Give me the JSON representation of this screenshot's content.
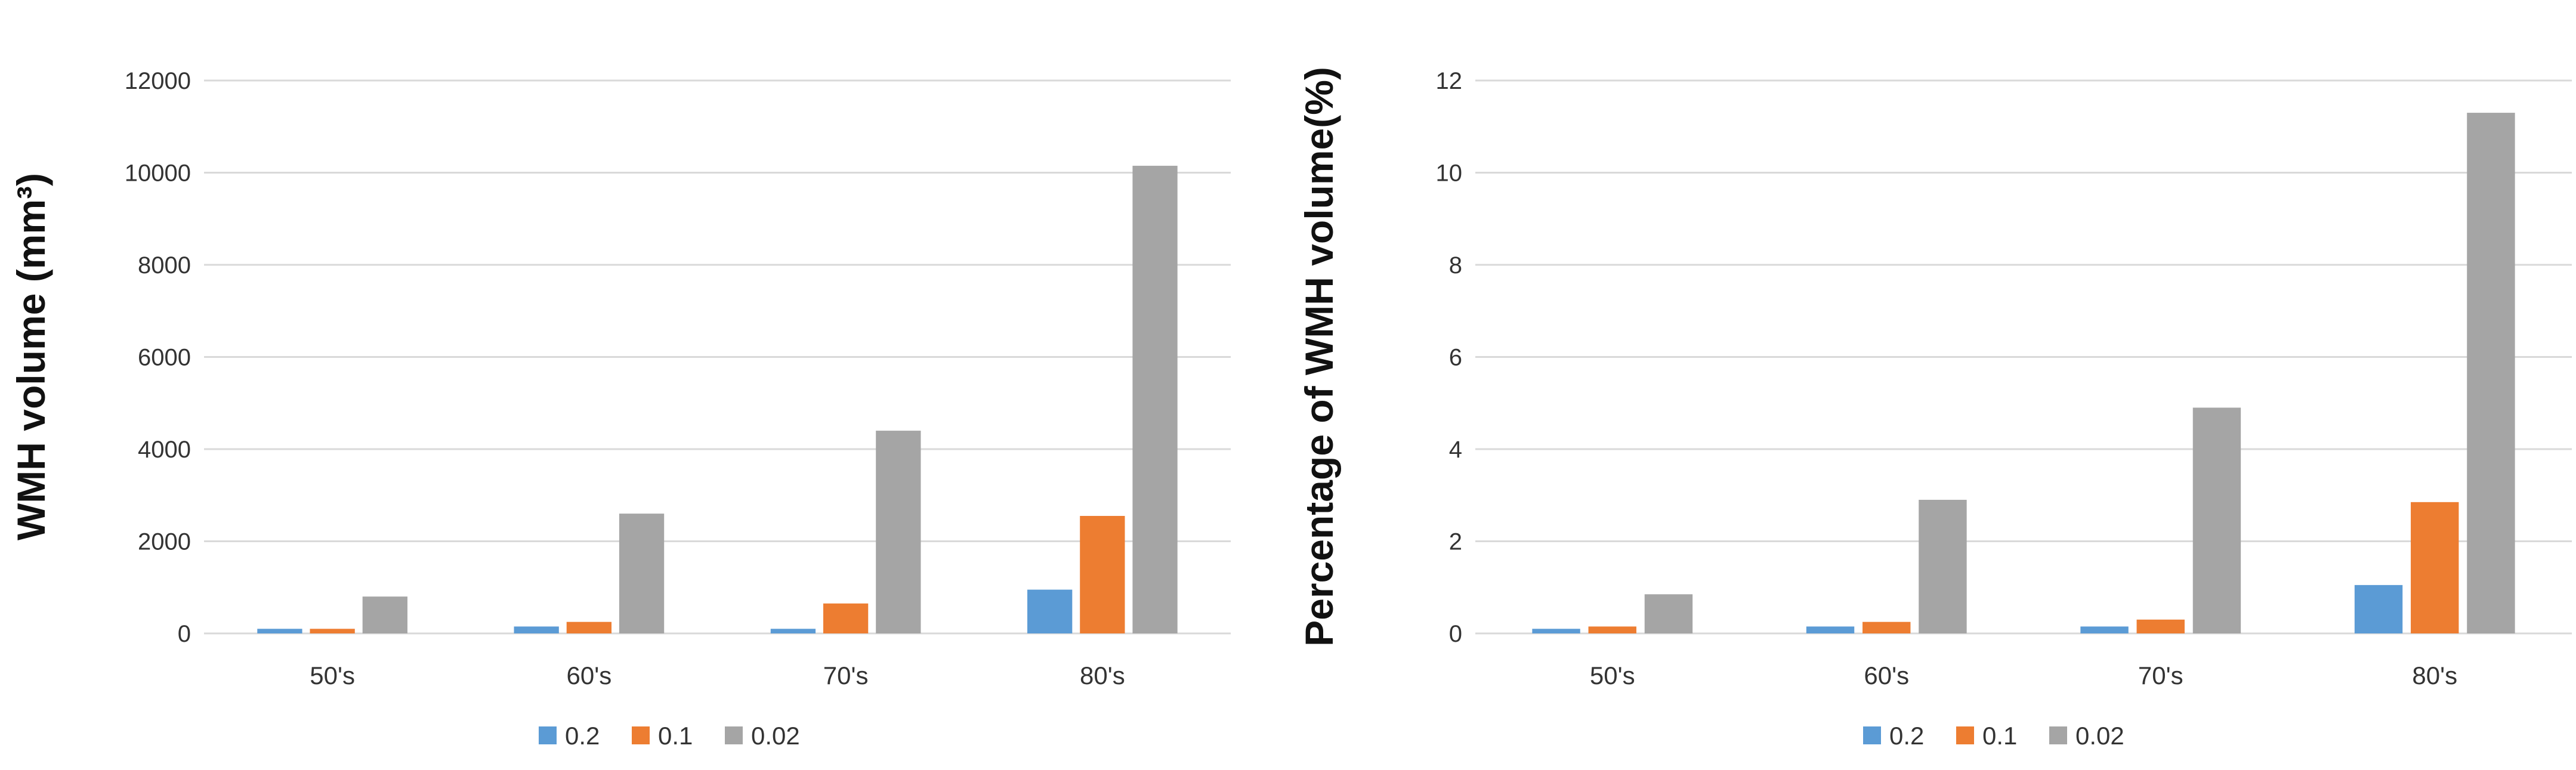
{
  "chart_data": [
    {
      "type": "bar",
      "title": "",
      "xlabel": "",
      "ylabel": "WMH volume (mm³)",
      "ylim": [
        0,
        12000
      ],
      "yticks": [
        "0",
        "2000",
        "4000",
        "6000",
        "8000",
        "10000",
        "12000"
      ],
      "ytick_values": [
        0,
        2000,
        4000,
        6000,
        8000,
        10000,
        12000
      ],
      "categories": [
        "50's",
        "60's",
        "70's",
        "80's"
      ],
      "grid": true,
      "legend_position": "bottom",
      "series": [
        {
          "name": "0.2",
          "color": "#5b9bd5",
          "values": [
            100,
            150,
            100,
            950
          ]
        },
        {
          "name": "0.1",
          "color": "#ed7d31",
          "values": [
            100,
            250,
            650,
            2550
          ]
        },
        {
          "name": "0.02",
          "color": "#a5a5a5",
          "values": [
            800,
            2600,
            4400,
            10150
          ]
        }
      ]
    },
    {
      "type": "bar",
      "title": "",
      "xlabel": "",
      "ylabel": "Percentage of WMH volume(%)",
      "ylim": [
        0,
        12
      ],
      "yticks": [
        "0",
        "2",
        "4",
        "6",
        "8",
        "10",
        "12"
      ],
      "ytick_values": [
        0,
        2,
        4,
        6,
        8,
        10,
        12
      ],
      "categories": [
        "50's",
        "60's",
        "70's",
        "80's"
      ],
      "grid": true,
      "legend_position": "bottom",
      "series": [
        {
          "name": "0.2",
          "color": "#5b9bd5",
          "values": [
            0.1,
            0.15,
            0.15,
            1.05
          ]
        },
        {
          "name": "0.1",
          "color": "#ed7d31",
          "values": [
            0.15,
            0.25,
            0.3,
            2.85
          ]
        },
        {
          "name": "0.02",
          "color": "#a5a5a5",
          "values": [
            0.85,
            2.9,
            4.9,
            11.3
          ]
        }
      ]
    }
  ]
}
